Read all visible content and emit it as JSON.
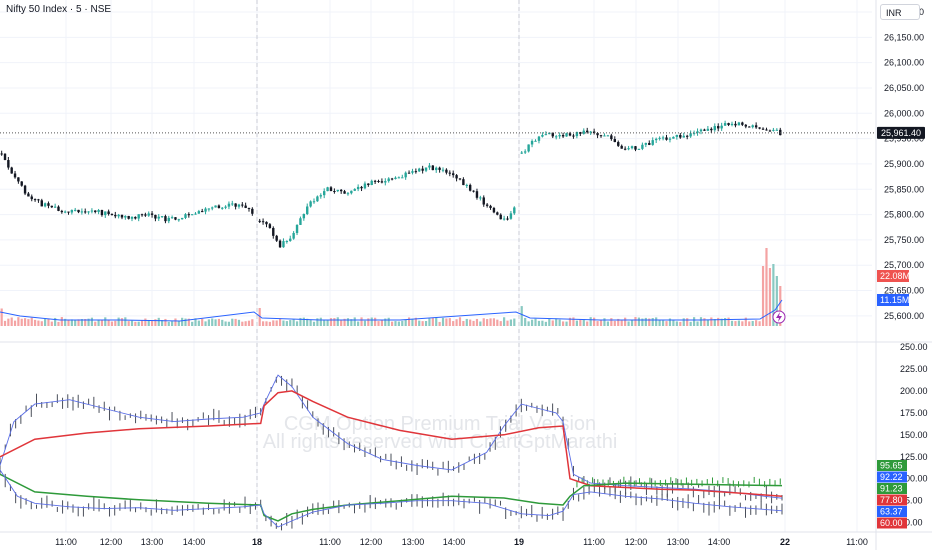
{
  "header": {
    "title": "Nifty 50 Index · 5 · NSE",
    "currency": "INR"
  },
  "watermark": {
    "line1": "CGM Option Premium Trial Version",
    "line2": "All rights reserved with ChartGptMarathi"
  },
  "colors": {
    "up": "#26a69a",
    "down": "#131722",
    "vol_up": "#89c9c2",
    "vol_down": "#f4a3a3",
    "volume_ma": "#2962ff",
    "last_price_badge": "#131722",
    "ind_blue": "#5a6ee6",
    "ind_red": "#e0353a",
    "ind_green": "#2e9a3a",
    "grid": "#f0f3fa"
  },
  "volume_labels": {
    "volume": "22.08M",
    "volume_ma": "11.15M"
  },
  "x_axis": [
    "11:00",
    "12:00",
    "13:00",
    "14:00",
    "18",
    "11:00",
    "12:00",
    "13:00",
    "14:00",
    "19",
    "11:00",
    "12:00",
    "13:00",
    "14:00",
    "22",
    "11:00"
  ],
  "chart_data": [
    {
      "type": "candlestick",
      "title": "Nifty 50 Index · 5 · NSE",
      "ylim": [
        25580,
        26200
      ],
      "y_ticks": [
        "25,600.00",
        "25,650.00",
        "25,700.00",
        "25,750.00",
        "25,800.00",
        "25,850.00",
        "25,900.00",
        "25,950.00",
        "26,000.00",
        "26,050.00",
        "26,100.00",
        "26,150.00",
        "26,200.00"
      ],
      "last_price": 25961.4,
      "last_price_label": "25,961.40",
      "sessions": [
        {
          "label": "17",
          "close_path": [
            [
              0,
              25920
            ],
            [
              4,
              25870
            ],
            [
              9,
              25830
            ],
            [
              14,
              25815
            ],
            [
              20,
              25805
            ],
            [
              26,
              25810
            ],
            [
              32,
              25800
            ],
            [
              38,
              25795
            ],
            [
              44,
              25800
            ],
            [
              50,
              25790
            ],
            [
              56,
              25800
            ],
            [
              62,
              25810
            ],
            [
              68,
              25820
            ],
            [
              74,
              25810
            ],
            [
              75,
              25800
            ]
          ]
        },
        {
          "label": "18",
          "close_path": [
            [
              0,
              25790
            ],
            [
              3,
              25770
            ],
            [
              6,
              25740
            ],
            [
              10,
              25760
            ],
            [
              14,
              25820
            ],
            [
              20,
              25850
            ],
            [
              26,
              25840
            ],
            [
              32,
              25860
            ],
            [
              38,
              25870
            ],
            [
              44,
              25880
            ],
            [
              50,
              25895
            ],
            [
              56,
              25880
            ],
            [
              62,
              25850
            ],
            [
              68,
              25810
            ],
            [
              72,
              25790
            ],
            [
              75,
              25810
            ]
          ]
        },
        {
          "label": "19",
          "close_path": [
            [
              0,
              25920
            ],
            [
              3,
              25945
            ],
            [
              8,
              25960
            ],
            [
              14,
              25955
            ],
            [
              20,
              25965
            ],
            [
              26,
              25950
            ],
            [
              30,
              25930
            ],
            [
              35,
              25935
            ],
            [
              40,
              25950
            ],
            [
              46,
              25955
            ],
            [
              52,
              25965
            ],
            [
              58,
              25975
            ],
            [
              64,
              25980
            ],
            [
              70,
              25972
            ],
            [
              75,
              25961.4
            ]
          ]
        }
      ]
    },
    {
      "type": "bar",
      "name": "Volume",
      "series": [
        {
          "name": "volume",
          "label": "22.08M",
          "spikes": [
            [
              4,
              10
            ],
            [
              9,
              12
            ],
            [
              10,
              18
            ]
          ]
        },
        {
          "name": "volume_ma",
          "label": "11.15M"
        }
      ]
    },
    {
      "type": "line",
      "name": "CGM Option Premium",
      "ylim": [
        45,
        250
      ],
      "y_ticks": [
        "250.00",
        "225.00",
        "200.00",
        "175.00",
        "150.00",
        "125.00",
        "100.00",
        "75.00",
        "50.00"
      ],
      "series": [
        {
          "name": "upper",
          "color": "#5a6ee6",
          "path": [
            [
              0,
              115
            ],
            [
              4,
              165
            ],
            [
              10,
              185
            ],
            [
              20,
              190
            ],
            [
              30,
              180
            ],
            [
              40,
              170
            ],
            [
              50,
              165
            ],
            [
              60,
              168
            ],
            [
              70,
              170
            ],
            [
              75,
              175
            ],
            [
              76,
              185
            ],
            [
              80,
              218
            ],
            [
              84,
              205
            ],
            [
              90,
              170
            ],
            [
              100,
              140
            ],
            [
              110,
              122
            ],
            [
              120,
              115
            ],
            [
              130,
              110
            ],
            [
              140,
              130
            ],
            [
              145,
              160
            ],
            [
              150,
              185
            ],
            [
              155,
              180
            ],
            [
              160,
              175
            ],
            [
              162,
              165
            ],
            [
              165,
              105
            ],
            [
              170,
              95
            ],
            [
              180,
              92
            ],
            [
              190,
              90
            ],
            [
              200,
              88
            ],
            [
              210,
              85
            ],
            [
              220,
              80
            ],
            [
              225,
              77.8
            ]
          ]
        },
        {
          "name": "red",
          "color": "#e0353a",
          "path": [
            [
              0,
              125
            ],
            [
              10,
              145
            ],
            [
              25,
              152
            ],
            [
              40,
              157
            ],
            [
              60,
              160
            ],
            [
              75,
              163
            ],
            [
              76,
              183
            ],
            [
              80,
              198
            ],
            [
              84,
              200
            ],
            [
              90,
              188
            ],
            [
              100,
              170
            ],
            [
              115,
              155
            ],
            [
              130,
              145
            ],
            [
              145,
              150
            ],
            [
              155,
              158
            ],
            [
              162,
              160
            ],
            [
              164,
              100
            ],
            [
              170,
              92
            ],
            [
              180,
              90
            ],
            [
              190,
              88
            ],
            [
              200,
              87
            ],
            [
              215,
              83
            ],
            [
              225,
              80
            ]
          ]
        },
        {
          "name": "green",
          "color": "#2e9a3a",
          "path": [
            [
              0,
              105
            ],
            [
              10,
              85
            ],
            [
              25,
              80
            ],
            [
              40,
              76
            ],
            [
              60,
              72
            ],
            [
              75,
              70
            ],
            [
              76,
              58
            ],
            [
              80,
              52
            ],
            [
              84,
              60
            ],
            [
              90,
              65
            ],
            [
              100,
              70
            ],
            [
              115,
              75
            ],
            [
              130,
              80
            ],
            [
              145,
              78
            ],
            [
              155,
              72
            ],
            [
              162,
              70
            ],
            [
              164,
              80
            ],
            [
              168,
              92
            ],
            [
              180,
              95
            ],
            [
              195,
              94
            ],
            [
              210,
              93
            ],
            [
              225,
              92.2
            ]
          ]
        },
        {
          "name": "lower",
          "color": "#5a6ee6",
          "path": [
            [
              0,
              110
            ],
            [
              5,
              80
            ],
            [
              10,
              72
            ],
            [
              20,
              68
            ],
            [
              30,
              66
            ],
            [
              40,
              67
            ],
            [
              50,
              64
            ],
            [
              60,
              66
            ],
            [
              70,
              68
            ],
            [
              75,
              70
            ],
            [
              76,
              60
            ],
            [
              80,
              45
            ],
            [
              84,
              52
            ],
            [
              90,
              62
            ],
            [
              100,
              70
            ],
            [
              110,
              72
            ],
            [
              120,
              75
            ],
            [
              130,
              75
            ],
            [
              140,
              72
            ],
            [
              150,
              60
            ],
            [
              158,
              58
            ],
            [
              162,
              63
            ],
            [
              165,
              82
            ],
            [
              170,
              85
            ],
            [
              180,
              80
            ],
            [
              190,
              77
            ],
            [
              200,
              72
            ],
            [
              210,
              68
            ],
            [
              220,
              65
            ],
            [
              225,
              63.4
            ]
          ]
        }
      ],
      "value_labels": [
        {
          "text": "95.65",
          "color": "#2e9a3a"
        },
        {
          "text": "92.22",
          "color": "#2962ff"
        },
        {
          "text": "91.23",
          "color": "#2e9a3a"
        },
        {
          "text": "77.80",
          "color": "#e0353a"
        },
        {
          "text": "63.37",
          "color": "#2962ff"
        },
        {
          "text": "60.00",
          "color": "#e0353a"
        }
      ]
    }
  ]
}
